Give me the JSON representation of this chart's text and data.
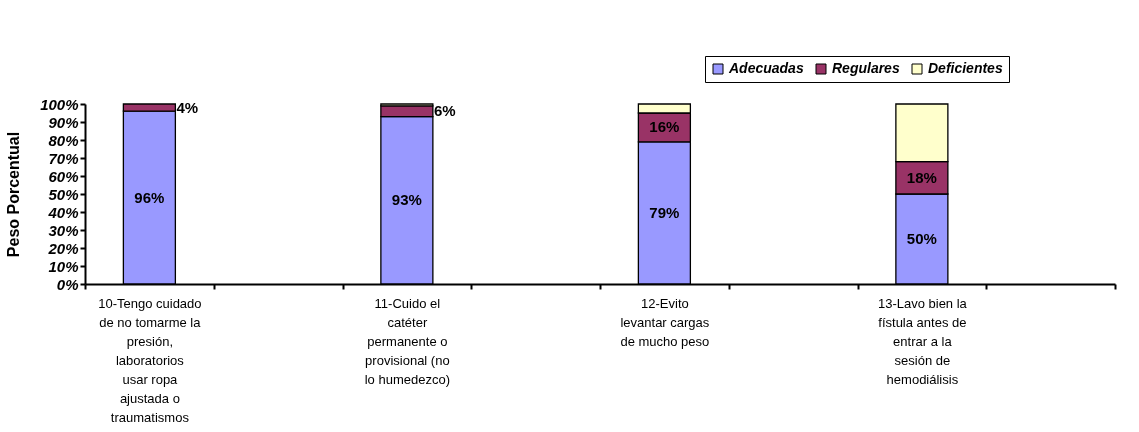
{
  "chart_data": {
    "type": "bar",
    "stacked": true,
    "ylabel": "Peso Porcentual",
    "categories": [
      "10-Tengo cuidado de no tomarme la presión, laboratorios usar ropa ajustada o traumatismos",
      null,
      "11-Cuido el catéter permanente o provisional (no lo humedezco)",
      null,
      "12-Evito levantar cargas de mucho peso",
      null,
      "13-Lavo bien la fístula antes de entrar a la sesión de hemodiálisis",
      null
    ],
    "series": [
      {
        "name": "Adecuadas",
        "color": "#9999ff",
        "values": [
          96,
          null,
          93,
          null,
          79,
          null,
          50,
          null
        ],
        "value_labels": [
          "96%",
          null,
          "93%",
          null,
          "79%",
          null,
          "50%",
          null
        ]
      },
      {
        "name": "Regulares",
        "color": "#993366",
        "values": [
          4,
          null,
          6,
          null,
          16,
          null,
          18,
          null
        ],
        "value_labels": [
          "4%",
          null,
          "6%",
          null,
          "16%",
          null,
          "18%",
          null
        ]
      },
      {
        "name": "Deficientes",
        "color": "#ffffcc",
        "values": [
          0,
          null,
          1,
          null,
          5,
          null,
          32,
          null
        ]
      }
    ],
    "ylim": [
      0,
      100
    ],
    "yticks": [
      {
        "value": 0,
        "label": "0%"
      },
      {
        "value": 10,
        "label": "10%"
      },
      {
        "value": 20,
        "label": "20%"
      },
      {
        "value": 30,
        "label": "30%"
      },
      {
        "value": 40,
        "label": "40%"
      },
      {
        "value": 50,
        "label": "50%"
      },
      {
        "value": 60,
        "label": "60%"
      },
      {
        "value": 70,
        "label": "70%"
      },
      {
        "value": 80,
        "label": "80%"
      },
      {
        "value": 90,
        "label": "90%"
      },
      {
        "value": 100,
        "label": "100%"
      }
    ],
    "grid": false,
    "legend": "top right"
  }
}
